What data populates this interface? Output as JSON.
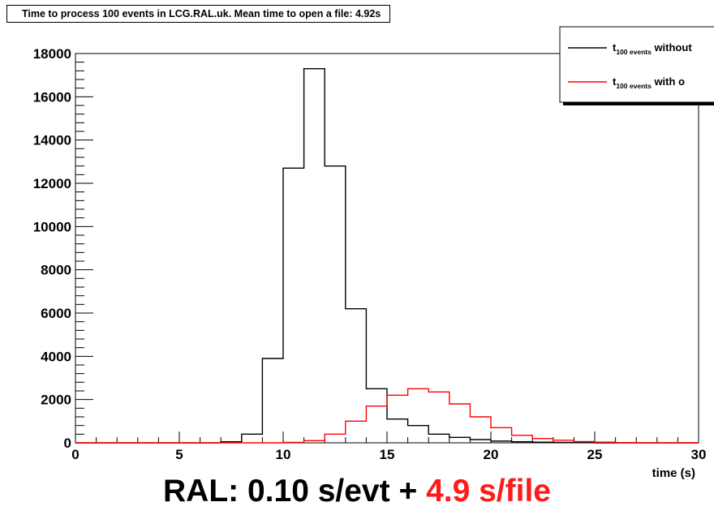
{
  "figure_title": "Time to process 100 events in LCG.RAL.uk. Mean time to open a file: 4.92s",
  "caption": {
    "part1": "RAL: 0.10 s/evt + ",
    "part2": "4.9 s/file",
    "part2_color": "#ff1a1a"
  },
  "chart_data": {
    "type": "histogram",
    "title": "Time to process 100 events in LCG.RAL.uk. Mean time to open a file: 4.92s",
    "xlabel": "time (s)",
    "ylabel": "",
    "xlim": [
      0,
      30
    ],
    "ylim": [
      0,
      18000
    ],
    "x_ticks": [
      0,
      5,
      10,
      15,
      20,
      25,
      30
    ],
    "y_ticks": [
      0,
      2000,
      4000,
      6000,
      8000,
      10000,
      12000,
      14000,
      16000,
      18000
    ],
    "grid": false,
    "legend_position": "top-right",
    "bin_edges": [
      0,
      1,
      2,
      3,
      4,
      5,
      6,
      7,
      8,
      9,
      10,
      11,
      12,
      13,
      14,
      15,
      16,
      17,
      18,
      19,
      20,
      21,
      22,
      23,
      24,
      25,
      26,
      27,
      28,
      29,
      30
    ],
    "series": [
      {
        "legend_main": "t",
        "legend_sub": "100 events",
        "legend_rest": " without",
        "color": "#000000",
        "values": [
          0,
          0,
          0,
          0,
          0,
          0,
          0,
          50,
          400,
          3900,
          12700,
          17300,
          12800,
          6200,
          2500,
          1100,
          800,
          400,
          250,
          150,
          80,
          50,
          30,
          20,
          10,
          0,
          0,
          0,
          0,
          0
        ]
      },
      {
        "legend_main": "t",
        "legend_sub": "100 events",
        "legend_rest": " with o",
        "color": "#ff0000",
        "values": [
          0,
          0,
          0,
          0,
          0,
          0,
          0,
          0,
          0,
          0,
          20,
          100,
          400,
          1000,
          1700,
          2200,
          2500,
          2350,
          1800,
          1200,
          700,
          350,
          200,
          120,
          60,
          30,
          10,
          0,
          0,
          0
        ]
      }
    ]
  }
}
